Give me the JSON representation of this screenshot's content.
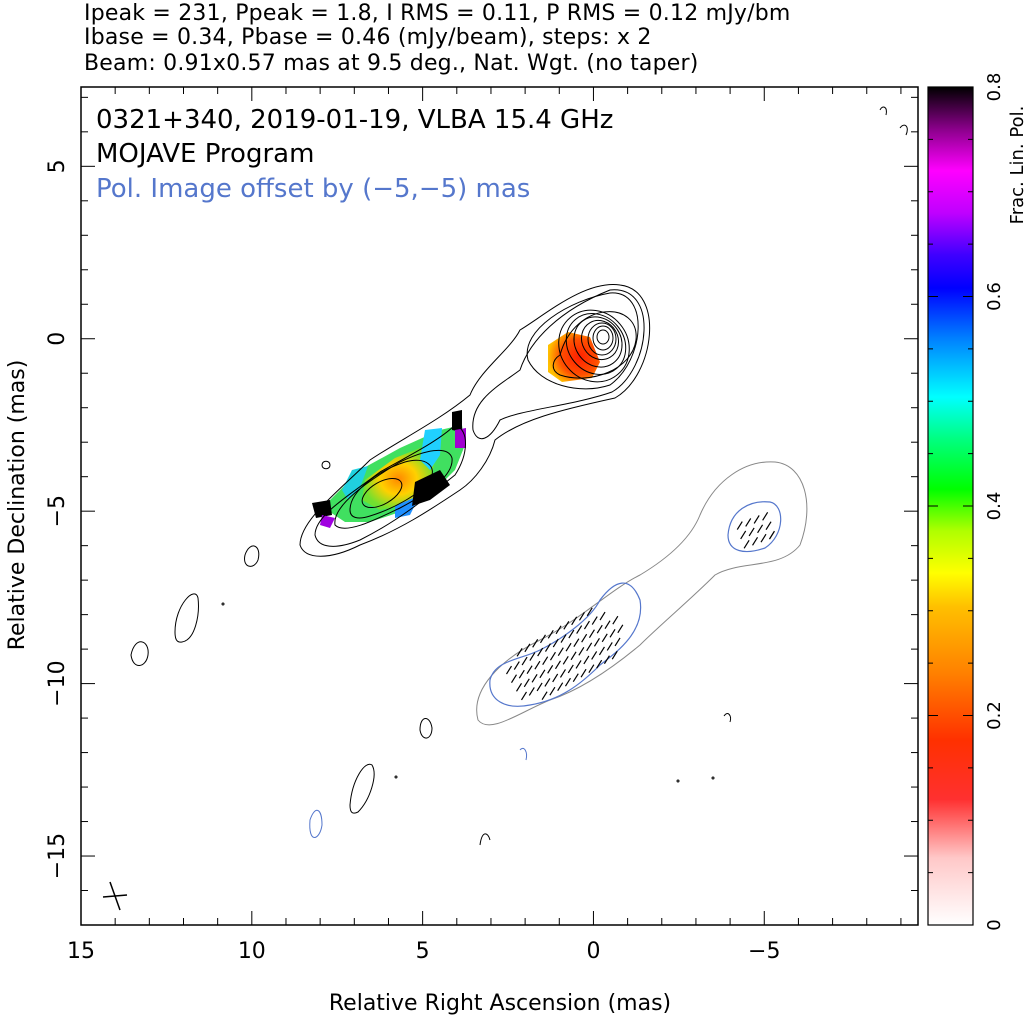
{
  "header": {
    "line1": "Ipeak = 231, Ppeak = 1.8, I RMS = 0.11, P RMS = 0.12 mJy/bm",
    "line2": "Ibase = 0.34, Pbase = 0.46 (mJy/beam), steps: x 2",
    "line3": "Beam: 0.91x0.57 mas at 9.5 deg., Nat. Wgt. (no taper)"
  },
  "plot": {
    "title_line1": "0321+340, 2019-01-19, VLBA 15.4 GHz",
    "title_line2": "MOJAVE Program",
    "title_line3": "Pol. Image offset by (−5,−5) mas",
    "title_line3_color": "#5577cc",
    "contour_color": "#000000",
    "pol_contour_color": "#888888",
    "pol_outline_color": "#5577cc"
  },
  "chart_data": {
    "type": "heatmap",
    "xlabel": "Relative Right Ascension (mas)",
    "ylabel": "Relative Declination (mas)",
    "xlim": [
      15,
      -9.5
    ],
    "ylim": [
      -17,
      7.3
    ],
    "xticks": [
      15,
      10,
      5,
      0,
      -5
    ],
    "xtick_labels": [
      "15",
      "10",
      "5",
      "0",
      "−5"
    ],
    "yticks": [
      5,
      0,
      -5,
      -10,
      -15
    ],
    "ytick_labels": [
      "5",
      "0",
      "−5",
      "−10",
      "−15"
    ],
    "colorbar": {
      "label": "Frac. Lin. Pol.",
      "range": [
        0,
        0.8
      ],
      "ticks": [
        0,
        0.2,
        0.4,
        0.6,
        0.8
      ],
      "tick_labels": [
        "0",
        "0.2",
        "0.4",
        "0.6",
        "0.8"
      ]
    },
    "core": {
      "x": 0,
      "y": 0
    },
    "contour_levels_count": 10,
    "pol_offset_mas": [
      -5,
      -5
    ]
  }
}
